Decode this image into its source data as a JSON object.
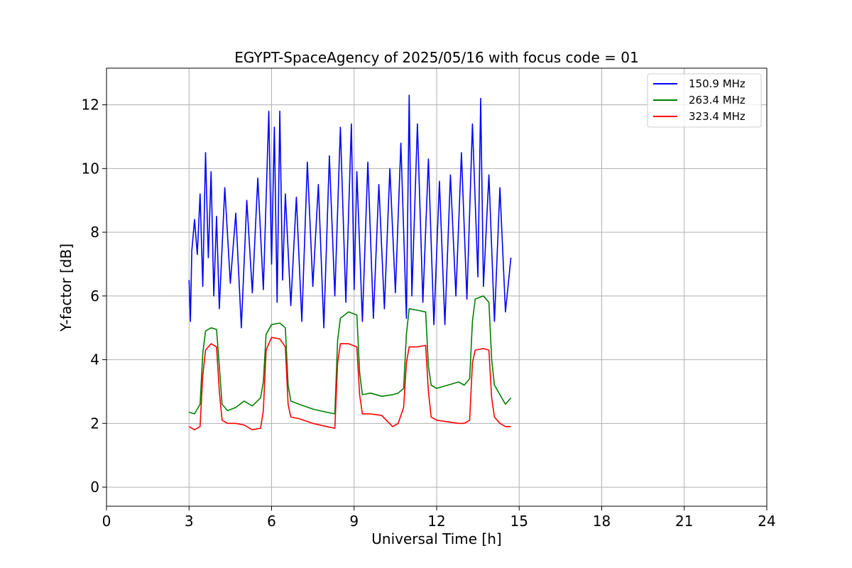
{
  "chart_data": {
    "type": "line",
    "title": "EGYPT-SpaceAgency of 2025/05/16 with focus code = 01",
    "xlabel": "Universal Time [h]",
    "ylabel": "Y-factor [dB]",
    "xlim": [
      0,
      24
    ],
    "ylim": [
      -0.6,
      13.15
    ],
    "xticks": [
      0,
      3,
      6,
      9,
      12,
      15,
      18,
      21,
      24
    ],
    "yticks": [
      0,
      2,
      4,
      6,
      8,
      10,
      12
    ],
    "grid": true,
    "legend_position": "top-right",
    "series": [
      {
        "name": "150.9 MHz",
        "color": "#0000ff",
        "x": [
          3.0,
          3.05,
          3.1,
          3.2,
          3.3,
          3.4,
          3.5,
          3.6,
          3.7,
          3.8,
          3.9,
          4.0,
          4.1,
          4.3,
          4.5,
          4.7,
          4.9,
          5.1,
          5.3,
          5.5,
          5.7,
          5.9,
          6.0,
          6.1,
          6.2,
          6.3,
          6.4,
          6.5,
          6.7,
          6.9,
          7.1,
          7.3,
          7.5,
          7.7,
          7.9,
          8.1,
          8.3,
          8.5,
          8.7,
          8.9,
          9.0,
          9.1,
          9.3,
          9.5,
          9.7,
          9.9,
          10.1,
          10.3,
          10.5,
          10.7,
          10.9,
          11.0,
          11.1,
          11.3,
          11.5,
          11.7,
          11.9,
          12.1,
          12.3,
          12.5,
          12.7,
          12.9,
          13.1,
          13.3,
          13.5,
          13.6,
          13.7,
          13.9,
          14.1,
          14.3,
          14.5,
          14.7
        ],
        "y": [
          6.5,
          5.2,
          7.4,
          8.4,
          7.3,
          9.2,
          6.3,
          10.5,
          7.2,
          9.9,
          6.0,
          8.5,
          5.6,
          9.4,
          6.4,
          8.6,
          5.0,
          9.0,
          6.1,
          9.7,
          6.2,
          11.8,
          7.0,
          11.3,
          5.8,
          11.8,
          6.5,
          9.2,
          5.7,
          9.1,
          5.2,
          10.2,
          6.3,
          9.5,
          5.0,
          10.4,
          6.0,
          11.3,
          5.8,
          11.4,
          6.2,
          9.9,
          5.2,
          10.2,
          5.3,
          9.5,
          5.6,
          10.0,
          6.1,
          10.8,
          5.3,
          12.3,
          6.0,
          11.4,
          5.8,
          10.3,
          5.1,
          9.6,
          5.1,
          9.8,
          6.0,
          10.5,
          5.9,
          11.4,
          6.6,
          12.2,
          6.3,
          9.8,
          5.2,
          9.4,
          5.5,
          7.2
        ]
      },
      {
        "name": "263.4 MHz",
        "color": "#008000",
        "x": [
          3.0,
          3.2,
          3.4,
          3.5,
          3.6,
          3.8,
          4.0,
          4.1,
          4.2,
          4.4,
          4.7,
          5.0,
          5.3,
          5.6,
          5.7,
          5.8,
          6.0,
          6.3,
          6.5,
          6.6,
          6.7,
          7.0,
          7.5,
          8.0,
          8.3,
          8.4,
          8.5,
          8.8,
          9.1,
          9.2,
          9.3,
          9.6,
          10.0,
          10.4,
          10.6,
          10.8,
          10.9,
          11.0,
          11.3,
          11.6,
          11.7,
          11.8,
          12.0,
          12.4,
          12.8,
          13.0,
          13.2,
          13.3,
          13.4,
          13.7,
          13.9,
          14.0,
          14.1,
          14.3,
          14.5,
          14.7
        ],
        "y": [
          2.35,
          2.3,
          2.6,
          4.2,
          4.9,
          5.0,
          4.95,
          3.8,
          2.6,
          2.4,
          2.5,
          2.7,
          2.55,
          2.8,
          3.3,
          4.8,
          5.1,
          5.15,
          5.0,
          3.2,
          2.7,
          2.6,
          2.45,
          2.35,
          2.3,
          4.6,
          5.3,
          5.5,
          5.4,
          3.6,
          2.9,
          2.95,
          2.85,
          2.9,
          2.95,
          3.1,
          4.8,
          5.6,
          5.55,
          5.5,
          3.8,
          3.2,
          3.1,
          3.2,
          3.3,
          3.2,
          3.4,
          5.2,
          5.9,
          6.0,
          5.8,
          4.0,
          3.2,
          2.9,
          2.6,
          2.8
        ]
      },
      {
        "name": "323.4 MHz",
        "color": "#ff0000",
        "x": [
          3.0,
          3.2,
          3.4,
          3.5,
          3.6,
          3.8,
          4.0,
          4.1,
          4.2,
          4.4,
          4.7,
          5.0,
          5.3,
          5.6,
          5.7,
          5.8,
          6.0,
          6.3,
          6.5,
          6.6,
          6.7,
          7.0,
          7.5,
          8.0,
          8.3,
          8.4,
          8.5,
          8.8,
          9.1,
          9.2,
          9.3,
          9.6,
          10.0,
          10.4,
          10.6,
          10.8,
          10.9,
          11.0,
          11.3,
          11.6,
          11.7,
          11.8,
          12.0,
          12.4,
          12.8,
          13.0,
          13.2,
          13.3,
          13.4,
          13.7,
          13.9,
          14.0,
          14.1,
          14.3,
          14.5,
          14.7
        ],
        "y": [
          1.9,
          1.8,
          1.9,
          3.5,
          4.3,
          4.5,
          4.4,
          3.0,
          2.1,
          2.0,
          2.0,
          1.95,
          1.8,
          1.85,
          2.4,
          4.3,
          4.7,
          4.65,
          4.4,
          2.6,
          2.2,
          2.15,
          2.0,
          1.9,
          1.85,
          3.9,
          4.5,
          4.5,
          4.4,
          2.9,
          2.3,
          2.3,
          2.25,
          1.9,
          2.0,
          2.5,
          3.9,
          4.4,
          4.4,
          4.45,
          3.0,
          2.2,
          2.1,
          2.05,
          2.0,
          2.0,
          2.1,
          3.9,
          4.3,
          4.35,
          4.3,
          2.8,
          2.2,
          2.0,
          1.9,
          1.9
        ]
      }
    ]
  }
}
